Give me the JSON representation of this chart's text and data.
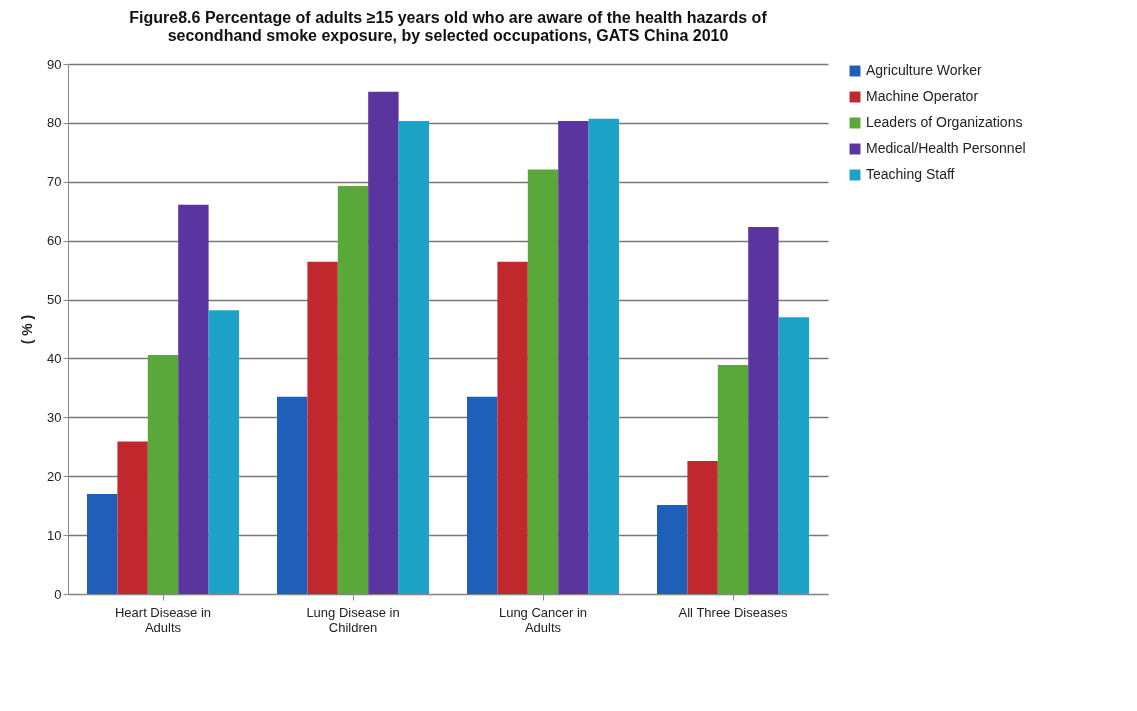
{
  "chart_data": {
    "type": "bar",
    "title": "Figure8.6 Percentage of adults ≥15 years old who are aware of the health hazards of secondhand smoke exposure, by selected occupations, GATS China 2010",
    "ylabel": "( % )",
    "categories": [
      "Heart Disease  in Adults",
      "Lung Disease in Children",
      "Lung Cancer in Adults",
      "All Three Diseases"
    ],
    "series": [
      {
        "name": "Agriculture Worker",
        "color": "#1f5fb8",
        "values": [
          17.0,
          33.5,
          33.5,
          15.1
        ]
      },
      {
        "name": "Machine Operator",
        "color": "#c0282e",
        "values": [
          25.9,
          56.4,
          56.4,
          22.6
        ]
      },
      {
        "name": "Leaders of Organizations",
        "color": "#5aa83a",
        "values": [
          40.6,
          69.3,
          72.1,
          38.9
        ]
      },
      {
        "name": "Medical/Health Personnel",
        "color": "#5a35a0",
        "values": [
          66.1,
          85.3,
          80.3,
          62.3
        ]
      },
      {
        "name": "Teaching Staff",
        "color": "#1ea3c8",
        "values": [
          48.2,
          80.3,
          80.7,
          47.0
        ]
      }
    ],
    "ylim": [
      0,
      90
    ],
    "yticks": [
      0,
      10,
      20,
      30,
      40,
      50,
      60,
      70,
      80,
      90
    ],
    "grid": "y",
    "legend": "right"
  }
}
